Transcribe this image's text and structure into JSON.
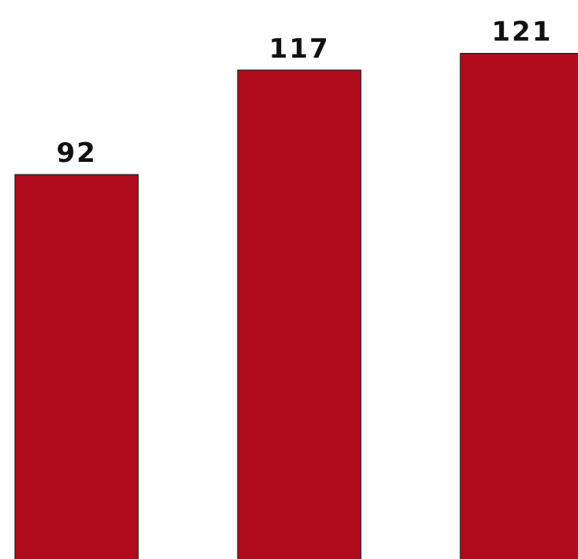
{
  "chart_data": {
    "type": "bar",
    "categories": [
      "",
      "",
      ""
    ],
    "values": [
      92,
      117,
      121
    ],
    "data_labels": [
      "92",
      "117",
      "121"
    ],
    "title": "",
    "xlabel": "",
    "ylabel": "",
    "ylim": [
      0,
      130
    ],
    "grid": false,
    "legend": "none",
    "colors": {
      "bar_fill": "#B10C1E",
      "bar_stroke": "#1F1F1F",
      "label": "#111111"
    }
  }
}
